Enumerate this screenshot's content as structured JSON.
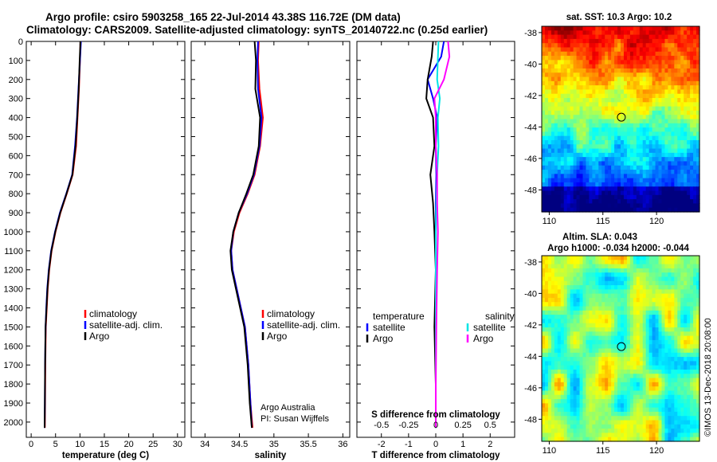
{
  "header": {
    "line1": "Argo profile: csiro 5903258_165 22-Jul-2014 43.38S 116.72E (DM data)",
    "line2": "Climatology: CARS2009. Satellite-adjusted climatology: synTS_20140722.nc (0.25d earlier)"
  },
  "colors": {
    "climatology": "#ff0000",
    "satellite": "#0000ff",
    "argo": "#000000",
    "sal_satellite": "#00e5e5",
    "sal_argo": "#ff00ff"
  },
  "chart_data": [
    {
      "type": "line",
      "id": "temperature",
      "xlabel": "temperature (deg C)",
      "ylabel": "",
      "xlim": [
        -1,
        31.5
      ],
      "ylim": [
        2080,
        0
      ],
      "x_ticks": [
        "0",
        "5",
        "10",
        "15",
        "20",
        "25",
        "30"
      ],
      "y_ticks": [
        "0",
        "100",
        "200",
        "300",
        "400",
        "500",
        "600",
        "700",
        "800",
        "900",
        "1000",
        "1100",
        "1200",
        "1300",
        "1400",
        "1500",
        "1600",
        "1700",
        "1800",
        "1900",
        "2000"
      ],
      "legend": [
        "climatology",
        "satellite-adj. clim.",
        "Argo"
      ],
      "series": [
        {
          "name": "climatology",
          "color": "#ff0000",
          "x": [
            10.1,
            10.0,
            9.8,
            9.5,
            9.2,
            8.5,
            7.3,
            6.0,
            5.0,
            4.2,
            3.7,
            3.4,
            3.2,
            3.0,
            2.9,
            2.85,
            2.8
          ],
          "y": [
            0,
            100,
            250,
            400,
            550,
            700,
            800,
            900,
            1000,
            1100,
            1200,
            1300,
            1400,
            1500,
            1700,
            1900,
            2030
          ]
        },
        {
          "name": "satellite-adj. clim.",
          "color": "#0000ff",
          "x": [
            10.2,
            10.0,
            9.7,
            9.4,
            9.0,
            8.4,
            7.2,
            5.9,
            4.9,
            4.1,
            3.6,
            3.3,
            3.1,
            2.95,
            2.85,
            2.8,
            2.75
          ],
          "y": [
            0,
            100,
            250,
            400,
            550,
            700,
            800,
            900,
            1000,
            1100,
            1200,
            1300,
            1400,
            1500,
            1700,
            1900,
            2030
          ]
        },
        {
          "name": "Argo",
          "color": "#000000",
          "x": [
            10.1,
            9.95,
            9.75,
            9.45,
            9.1,
            8.45,
            7.25,
            5.95,
            4.95,
            4.15,
            3.65,
            3.35,
            3.15,
            2.95,
            2.85,
            2.8,
            2.75
          ],
          "y": [
            0,
            100,
            250,
            400,
            550,
            700,
            800,
            900,
            1000,
            1100,
            1200,
            1300,
            1400,
            1500,
            1700,
            1900,
            2030
          ]
        }
      ]
    },
    {
      "type": "line",
      "id": "salinity",
      "xlabel": "salinity",
      "ylabel": "",
      "xlim": [
        33.8,
        36.1
      ],
      "ylim": [
        2080,
        0
      ],
      "x_ticks": [
        "34",
        "34.5",
        "35",
        "35.5",
        "36"
      ],
      "legend": [
        "climatology",
        "satellite-adj. clim.",
        "Argo"
      ],
      "annotations": [
        "Argo Australia",
        "PI: Susan Wijffels"
      ],
      "series": [
        {
          "name": "climatology",
          "color": "#ff0000",
          "x": [
            34.78,
            34.77,
            34.79,
            34.84,
            34.8,
            34.72,
            34.62,
            34.5,
            34.42,
            34.38,
            34.4,
            34.46,
            34.52,
            34.58,
            34.63,
            34.66,
            34.69
          ],
          "y": [
            0,
            100,
            250,
            400,
            550,
            700,
            800,
            900,
            1000,
            1100,
            1200,
            1300,
            1400,
            1500,
            1700,
            1900,
            2030
          ]
        },
        {
          "name": "satellite-adj. clim.",
          "color": "#0000ff",
          "x": [
            34.77,
            34.76,
            34.77,
            34.82,
            34.79,
            34.71,
            34.61,
            34.49,
            34.41,
            34.38,
            34.4,
            34.46,
            34.52,
            34.58,
            34.63,
            34.66,
            34.68
          ],
          "y": [
            0,
            100,
            250,
            400,
            550,
            700,
            800,
            900,
            1000,
            1100,
            1200,
            1300,
            1400,
            1500,
            1700,
            1900,
            2030
          ]
        },
        {
          "name": "Argo",
          "color": "#000000",
          "x": [
            34.72,
            34.74,
            34.73,
            34.8,
            34.78,
            34.7,
            34.6,
            34.49,
            34.41,
            34.37,
            34.39,
            34.45,
            34.51,
            34.57,
            34.62,
            34.65,
            34.68
          ],
          "y": [
            0,
            100,
            250,
            400,
            550,
            700,
            800,
            900,
            1000,
            1100,
            1200,
            1300,
            1400,
            1500,
            1700,
            1900,
            2030
          ]
        }
      ]
    },
    {
      "type": "line",
      "id": "difference",
      "xlabel": "T difference from climatology",
      "xlabel2": "S difference from climatology",
      "xlim": [
        -2.9,
        2.9
      ],
      "ylim": [
        2080,
        0
      ],
      "x_ticks": [
        "-2",
        "-1",
        "0",
        "1",
        "2"
      ],
      "x2_ticks": [
        "-0.5",
        "-0.25",
        "0",
        "0.25",
        "0.5"
      ],
      "legend_left_title": "temperature",
      "legend_right_title": "salinity",
      "legend": [
        "satellite",
        "Argo",
        "satellite",
        "Argo"
      ],
      "series": [
        {
          "name": "satellite",
          "color": "#0000ff",
          "x": [
            0.3,
            0.2,
            -0.3,
            -0.1,
            0.05,
            0.0,
            0.02,
            0.0,
            0.0,
            0.0,
            0.0,
            0.0,
            0.0
          ],
          "y": [
            0,
            80,
            200,
            300,
            400,
            550,
            700,
            850,
            1000,
            1200,
            1500,
            1800,
            2030
          ]
        },
        {
          "name": "Argo",
          "color": "#000000",
          "x": [
            -0.1,
            -0.15,
            -0.3,
            -0.35,
            -0.1,
            -0.05,
            -0.2,
            -0.1,
            -0.05,
            0.0,
            -0.05,
            0.0,
            0.0
          ],
          "y": [
            0,
            80,
            200,
            300,
            400,
            550,
            700,
            850,
            1000,
            1200,
            1500,
            1800,
            2030
          ]
        },
        {
          "name": "satellite",
          "color": "#00e5e5",
          "x": [
            0.1,
            0.08,
            0.05,
            0.15,
            0.08,
            0.1,
            0.05,
            0.02,
            0.0,
            0.0,
            0.0,
            0.0,
            0.0
          ],
          "y": [
            0,
            80,
            200,
            300,
            400,
            550,
            700,
            850,
            1000,
            1200,
            1500,
            1800,
            2030
          ]
        },
        {
          "name": "Argo",
          "color": "#ff00ff",
          "x": [
            0.45,
            0.5,
            0.3,
            -0.05,
            0.0,
            0.0,
            0.05,
            0.05,
            0.08,
            0.05,
            0.02,
            0.0,
            0.0
          ],
          "y": [
            0,
            80,
            200,
            300,
            400,
            550,
            700,
            850,
            1000,
            1200,
            1500,
            1800,
            2030
          ]
        }
      ]
    },
    {
      "type": "heatmap",
      "id": "sst-map",
      "title": "sat. SST: 10.3 Argo: 10.2",
      "x_ticks": [
        "110",
        "115",
        "120"
      ],
      "y_ticks": [
        "-38",
        "-40",
        "-42",
        "-44",
        "-46",
        "-48"
      ],
      "xlim": [
        109.3,
        124
      ],
      "ylim": [
        -49.4,
        -37.6
      ],
      "marker": {
        "lon": 116.72,
        "lat": -43.38
      }
    },
    {
      "type": "heatmap",
      "id": "sla-map",
      "title": "Altim. SLA: 0.043",
      "subtitle": "Argo h1000: -0.034 h2000: -0.044",
      "x_ticks": [
        "110",
        "115",
        "120"
      ],
      "y_ticks": [
        "-38",
        "-40",
        "-42",
        "-44",
        "-46",
        "-48"
      ],
      "xlim": [
        109.3,
        124
      ],
      "ylim": [
        -49.4,
        -37.6
      ],
      "marker": {
        "lon": 116.72,
        "lat": -43.38
      }
    }
  ],
  "credit": "©IMOS 13-Dec-2018 20:08:00"
}
